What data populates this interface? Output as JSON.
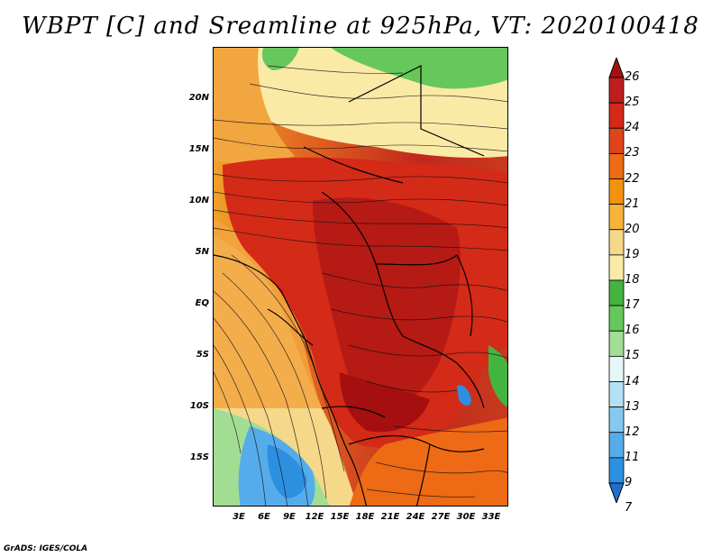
{
  "title": "WBPT [C] and Sreamline at 925hPa, VT: 2020100418",
  "y_axis_labels": [
    "20N",
    "15N",
    "10N",
    "5N",
    "EQ",
    "5S",
    "10S",
    "15S"
  ],
  "x_axis_labels": [
    "3E",
    "6E",
    "9E",
    "12E",
    "15E",
    "18E",
    "21E",
    "24E",
    "27E",
    "30E",
    "33E"
  ],
  "colorbar": {
    "labels": [
      "26",
      "25",
      "24",
      "23",
      "22",
      "21",
      "20",
      "19",
      "18",
      "17",
      "16",
      "15",
      "14",
      "13",
      "12",
      "11",
      "9",
      "7"
    ],
    "colors": [
      "#a50f0f",
      "#be1e1e",
      "#d42a18",
      "#e0441a",
      "#ee6a14",
      "#f2920e",
      "#f8b43a",
      "#f6d88a",
      "#fbeaa6",
      "#44b440",
      "#66c85a",
      "#a2dd94",
      "#e6f7f8",
      "#b6e0f5",
      "#86c8ee",
      "#56acea",
      "#2d8fe0",
      "#1e6fd0"
    ]
  },
  "credit": "GrADS: IGES/COLA"
}
